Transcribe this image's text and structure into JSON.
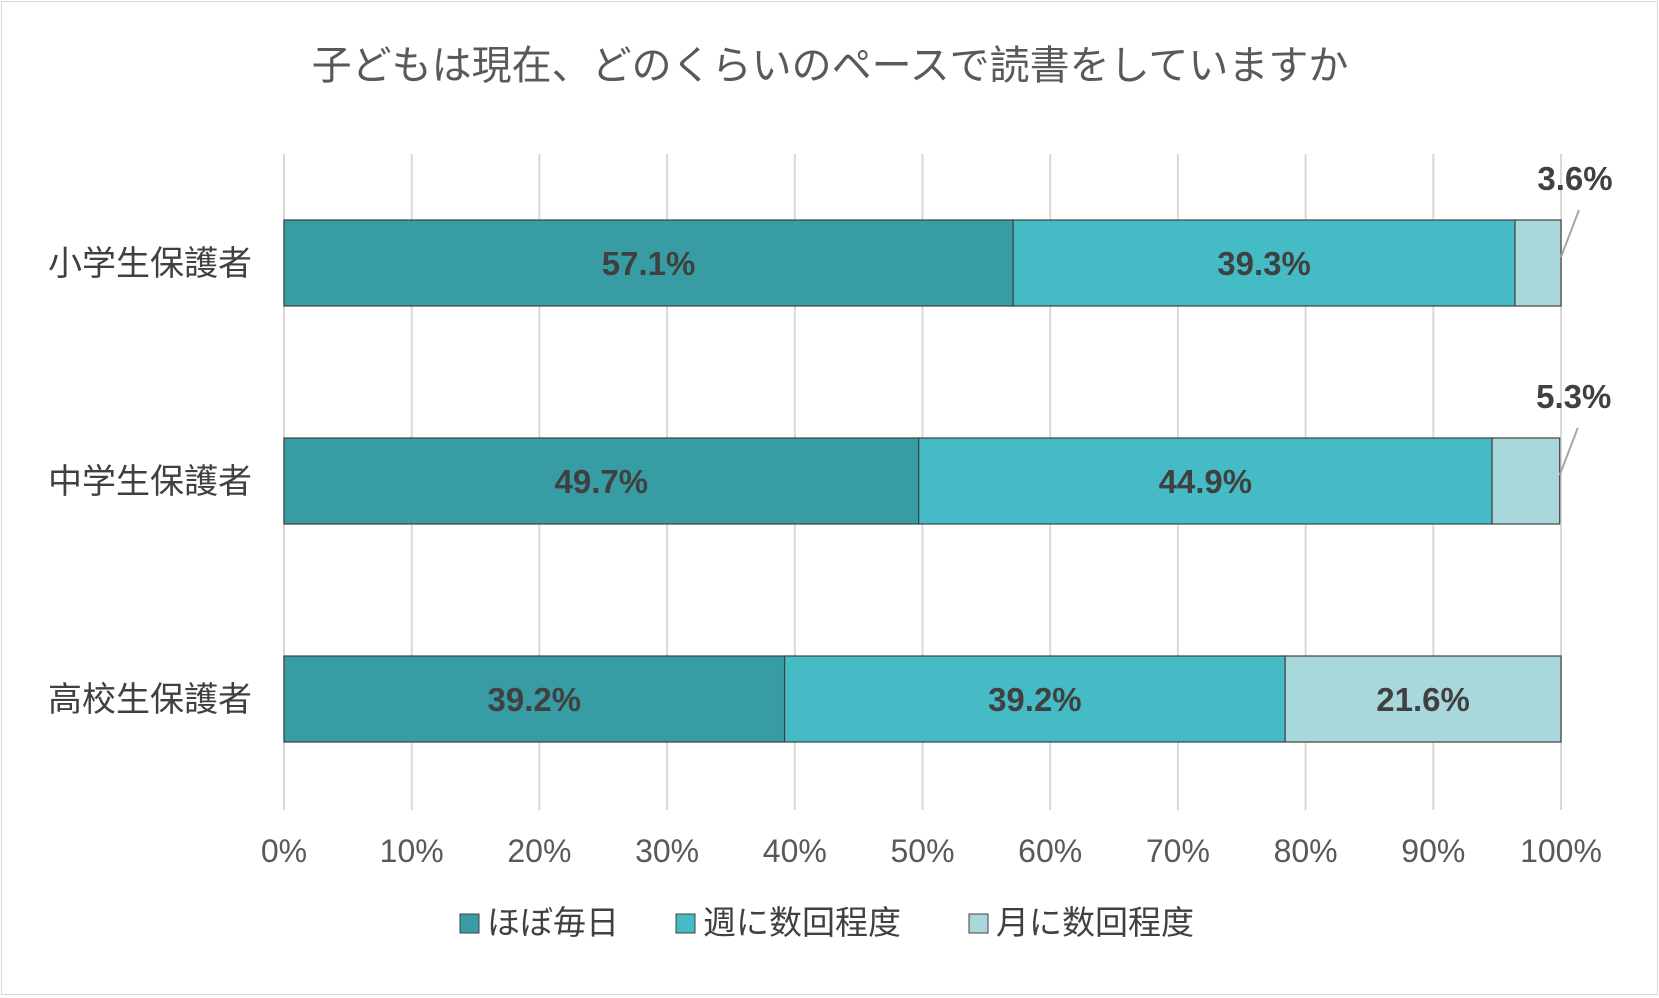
{
  "chart_data": {
    "type": "bar",
    "orientation": "horizontal",
    "stacked": "percent",
    "title": "子どもは現在、どのくらいのペースで読書をしていますか",
    "categories": [
      "小学生保護者",
      "中学生保護者",
      "高校生保護者"
    ],
    "series": [
      {
        "name": "ほぼ毎日",
        "values": [
          57.1,
          49.7,
          39.2
        ],
        "labels": [
          "57.1%",
          "49.7%",
          "39.2%"
        ],
        "color": "#379ca3"
      },
      {
        "name": "週に数回程度",
        "values": [
          39.3,
          44.9,
          39.2
        ],
        "labels": [
          "39.3%",
          "44.9%",
          "39.2%"
        ],
        "color": "#45bbc6"
      },
      {
        "name": "月に数回程度",
        "values": [
          3.6,
          5.3,
          21.6
        ],
        "labels": [
          "3.6%",
          "5.3%",
          "21.6%"
        ],
        "color": "#a8d8dc"
      }
    ],
    "x_ticks": [
      "0%",
      "10%",
      "20%",
      "30%",
      "40%",
      "50%",
      "60%",
      "70%",
      "80%",
      "90%",
      "100%"
    ],
    "xlim": [
      0,
      100
    ],
    "grid": true,
    "legend": "bottom"
  }
}
